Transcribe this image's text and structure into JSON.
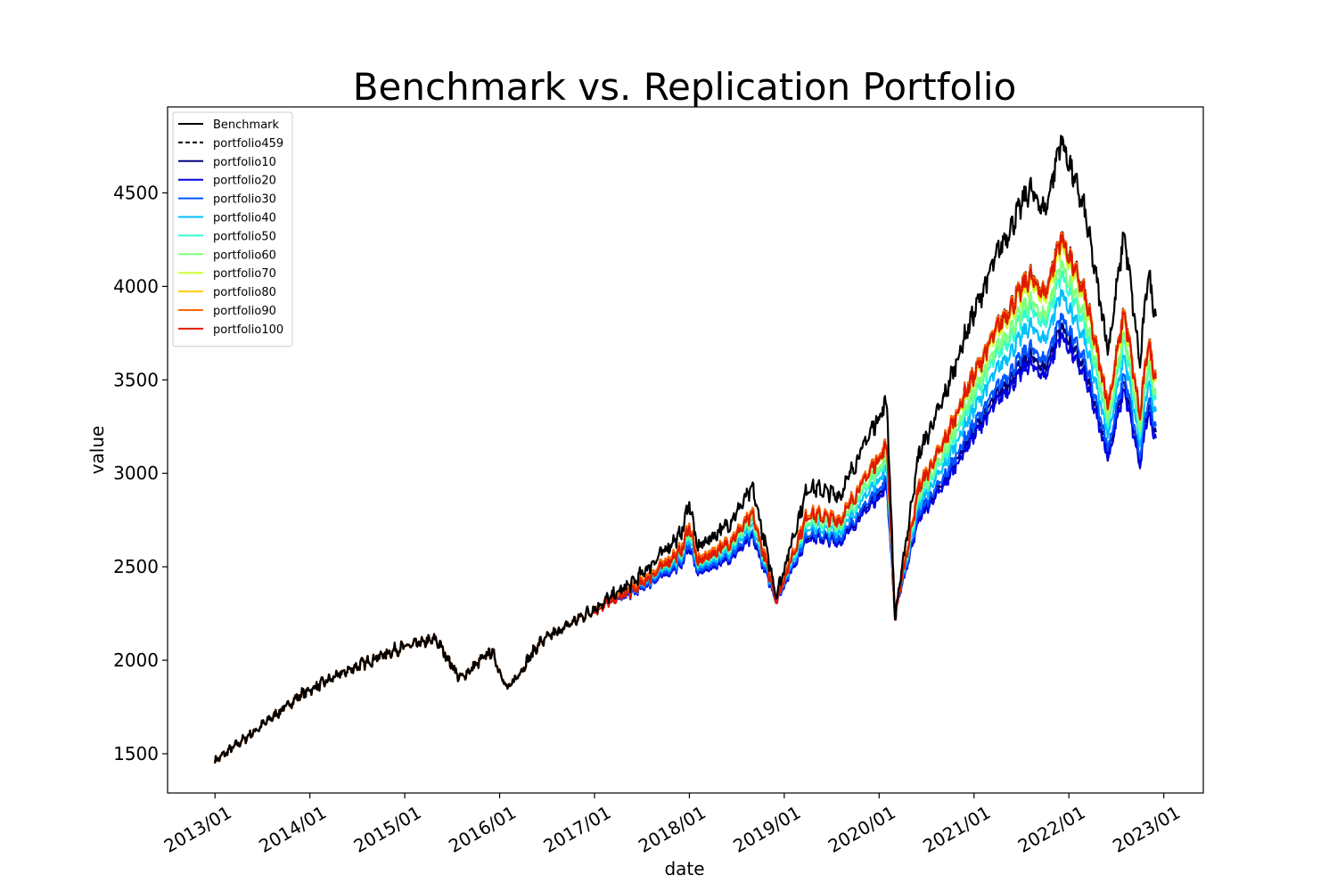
{
  "chart_data": {
    "type": "line",
    "title": "Benchmark vs. Replication Portfolio",
    "xlabel": "date",
    "ylabel": "value",
    "x_ticks": [
      "2013/01",
      "2014/01",
      "2015/01",
      "2016/01",
      "2017/01",
      "2018/01",
      "2019/01",
      "2020/01",
      "2021/01",
      "2022/01",
      "2023/01"
    ],
    "y_ticks": [
      1500,
      2000,
      2500,
      3000,
      3500,
      4000,
      4500
    ],
    "xlim": [
      "2012-07",
      "2023-06"
    ],
    "ylim": [
      1290,
      4960
    ],
    "grid": false,
    "legend_position": "upper left",
    "benchmark_points": [
      [
        "2013-01",
        1460
      ],
      [
        "2013-06",
        1620
      ],
      [
        "2013-12",
        1820
      ],
      [
        "2014-06",
        1950
      ],
      [
        "2014-12",
        2060
      ],
      [
        "2015-05",
        2110
      ],
      [
        "2015-08",
        1900
      ],
      [
        "2015-12",
        2050
      ],
      [
        "2016-02",
        1840
      ],
      [
        "2016-06",
        2090
      ],
      [
        "2016-12",
        2250
      ],
      [
        "2017-06",
        2420
      ],
      [
        "2017-12",
        2680
      ],
      [
        "2018-01",
        2850
      ],
      [
        "2018-02",
        2600
      ],
      [
        "2018-06",
        2730
      ],
      [
        "2018-09",
        2920
      ],
      [
        "2018-12",
        2350
      ],
      [
        "2019-04",
        2930
      ],
      [
        "2019-08",
        2880
      ],
      [
        "2019-12",
        3230
      ],
      [
        "2020-02",
        3380
      ],
      [
        "2020-03",
        2230
      ],
      [
        "2020-06",
        3100
      ],
      [
        "2020-09",
        3380
      ],
      [
        "2020-12",
        3750
      ],
      [
        "2021-04",
        4180
      ],
      [
        "2021-08",
        4520
      ],
      [
        "2021-10",
        4400
      ],
      [
        "2021-12",
        4790
      ],
      [
        "2022-03",
        4400
      ],
      [
        "2022-06",
        3660
      ],
      [
        "2022-08",
        4290
      ],
      [
        "2022-10",
        3580
      ],
      [
        "2022-11",
        4080
      ],
      [
        "2022-12",
        3840
      ]
    ],
    "series": [
      {
        "name": "Benchmark",
        "color": "#000000",
        "dash": "solid",
        "offset": 0
      },
      {
        "name": "portfolio459",
        "color": "#000000",
        "dash": "dashed",
        "offset": 0.22
      },
      {
        "name": "portfolio10",
        "color": "#00007f",
        "dash": "solid",
        "offset": 0.4
      },
      {
        "name": "portfolio20",
        "color": "#0000e0",
        "dash": "solid",
        "offset": 0.42
      },
      {
        "name": "portfolio30",
        "color": "#0055ff",
        "dash": "solid",
        "offset": 0.38
      },
      {
        "name": "portfolio40",
        "color": "#00bfff",
        "dash": "solid",
        "offset": 0.33
      },
      {
        "name": "portfolio50",
        "color": "#33ffcc",
        "dash": "solid",
        "offset": 0.29
      },
      {
        "name": "portfolio60",
        "color": "#80ff80",
        "dash": "solid",
        "offset": 0.27
      },
      {
        "name": "portfolio70",
        "color": "#ccff33",
        "dash": "solid",
        "offset": 0.23
      },
      {
        "name": "portfolio80",
        "color": "#ffcc00",
        "dash": "solid",
        "offset": 0.22
      },
      {
        "name": "portfolio90",
        "color": "#ff6600",
        "dash": "solid",
        "offset": 0.21
      },
      {
        "name": "portfolio100",
        "color": "#e01a00",
        "dash": "solid",
        "offset": 0.2
      }
    ]
  }
}
